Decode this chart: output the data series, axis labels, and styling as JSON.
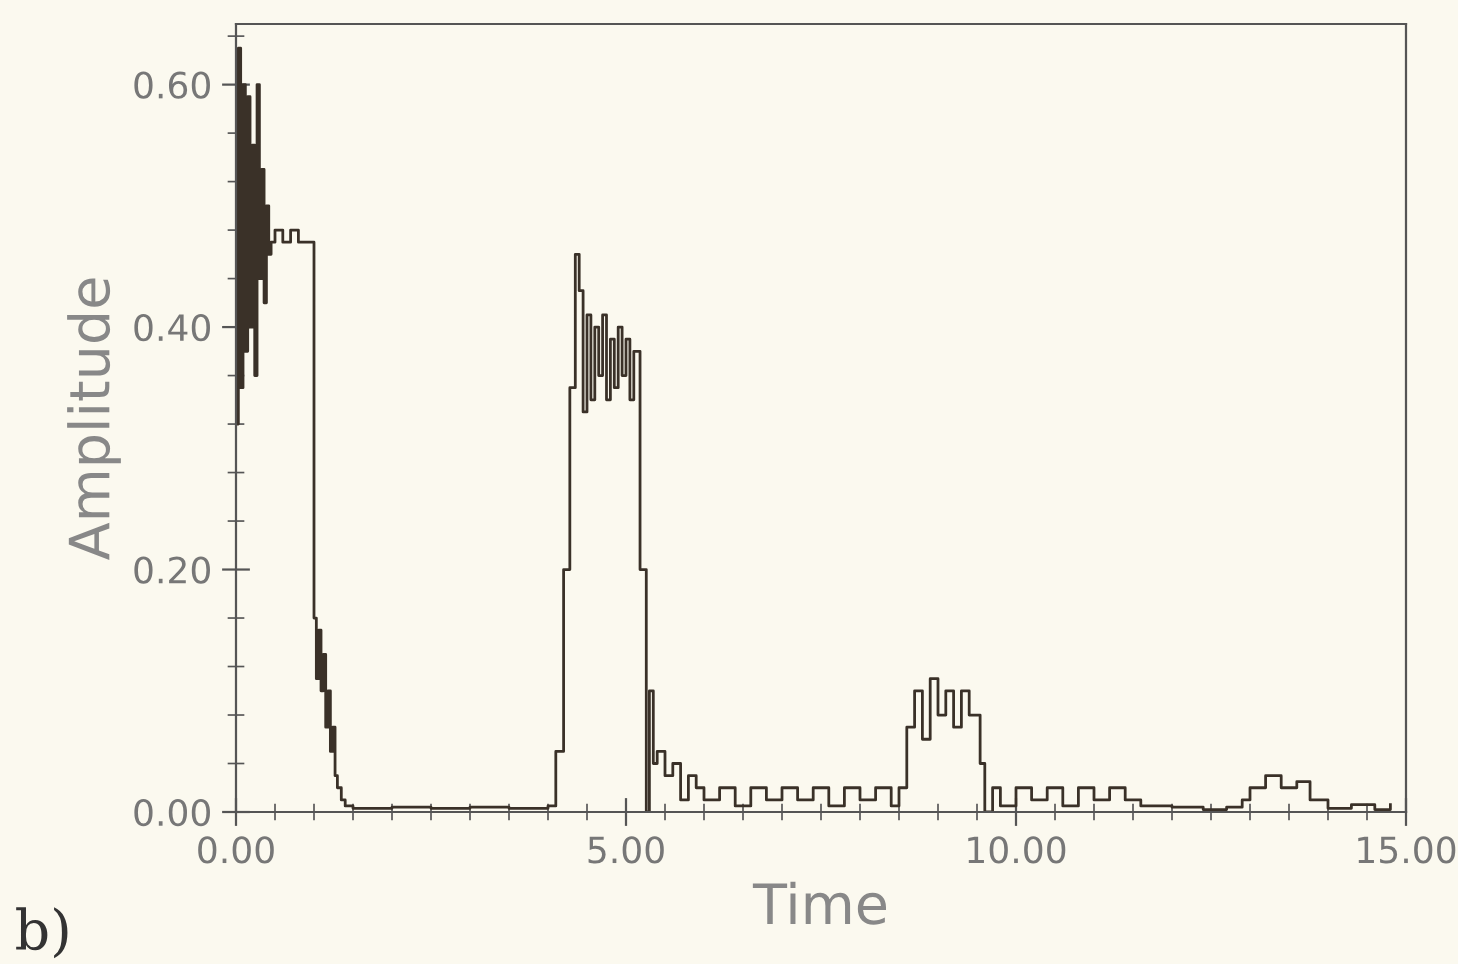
{
  "chart_data": {
    "type": "step",
    "xlabel": "Time",
    "ylabel": "Amplitude",
    "annotations": [
      "b)"
    ],
    "series": [
      {
        "color": "#3a3128",
        "x": [
          0.0,
          0.03,
          0.06,
          0.09,
          0.12,
          0.15,
          0.18,
          0.21,
          0.24,
          0.27,
          0.3,
          0.33,
          0.36,
          0.39,
          0.42,
          0.45,
          0.5,
          0.6,
          0.7,
          0.8,
          0.9,
          1.0,
          1.03,
          1.06,
          1.09,
          1.12,
          1.15,
          1.18,
          1.21,
          1.24,
          1.27,
          1.3,
          1.35,
          1.4,
          1.5,
          2.0,
          2.5,
          3.0,
          3.5,
          4.0,
          4.1,
          4.2,
          4.28,
          4.35,
          4.4,
          4.45,
          4.5,
          4.55,
          4.6,
          4.65,
          4.7,
          4.75,
          4.8,
          4.85,
          4.9,
          4.95,
          5.0,
          5.05,
          5.1,
          5.18,
          5.26,
          5.3,
          5.35,
          5.4,
          5.5,
          5.6,
          5.7,
          5.8,
          5.9,
          6.0,
          6.2,
          6.4,
          6.6,
          6.8,
          7.0,
          7.2,
          7.4,
          7.6,
          7.8,
          8.0,
          8.2,
          8.4,
          8.5,
          8.6,
          8.7,
          8.8,
          8.9,
          9.0,
          9.1,
          9.2,
          9.3,
          9.4,
          9.54,
          9.6,
          9.7,
          9.8,
          10.0,
          10.2,
          10.4,
          10.6,
          10.8,
          11.0,
          11.2,
          11.4,
          11.6,
          12.0,
          12.4,
          12.7,
          12.9,
          13.0,
          13.2,
          13.4,
          13.6,
          13.77,
          14.0,
          14.3,
          14.6,
          14.8
        ],
        "values": [
          0.32,
          0.63,
          0.35,
          0.6,
          0.38,
          0.59,
          0.4,
          0.55,
          0.36,
          0.6,
          0.44,
          0.53,
          0.42,
          0.5,
          0.46,
          0.47,
          0.48,
          0.47,
          0.48,
          0.47,
          0.47,
          0.16,
          0.11,
          0.15,
          0.1,
          0.13,
          0.07,
          0.1,
          0.05,
          0.07,
          0.03,
          0.02,
          0.01,
          0.005,
          0.003,
          0.004,
          0.003,
          0.004,
          0.003,
          0.005,
          0.05,
          0.2,
          0.35,
          0.46,
          0.43,
          0.33,
          0.41,
          0.34,
          0.4,
          0.36,
          0.41,
          0.34,
          0.39,
          0.35,
          0.4,
          0.36,
          0.39,
          0.34,
          0.38,
          0.2,
          0.0,
          0.1,
          0.04,
          0.05,
          0.03,
          0.04,
          0.01,
          0.03,
          0.02,
          0.01,
          0.02,
          0.005,
          0.02,
          0.01,
          0.02,
          0.01,
          0.02,
          0.005,
          0.02,
          0.01,
          0.02,
          0.005,
          0.02,
          0.07,
          0.1,
          0.06,
          0.11,
          0.08,
          0.1,
          0.07,
          0.1,
          0.08,
          0.04,
          0.0,
          0.02,
          0.005,
          0.02,
          0.01,
          0.02,
          0.005,
          0.02,
          0.01,
          0.02,
          0.01,
          0.005,
          0.004,
          0.002,
          0.004,
          0.01,
          0.02,
          0.03,
          0.02,
          0.025,
          0.01,
          0.003,
          0.006,
          0.002,
          0.006
        ]
      }
    ],
    "xlim": [
      0,
      15
    ],
    "xticks": [
      {
        "value": 0,
        "label": "0.00"
      },
      {
        "value": 5,
        "label": "5.00"
      },
      {
        "value": 10,
        "label": "10.00"
      },
      {
        "value": 15,
        "label": "15.00"
      }
    ],
    "ylim": [
      0,
      0.65
    ],
    "yticks": [
      {
        "value": 0,
        "label": "0.00"
      },
      {
        "value": 0.2,
        "label": "0.20"
      },
      {
        "value": 0.4,
        "label": "0.40"
      },
      {
        "value": 0.6,
        "label": "0.60"
      }
    ],
    "grid": false,
    "legend": false
  }
}
